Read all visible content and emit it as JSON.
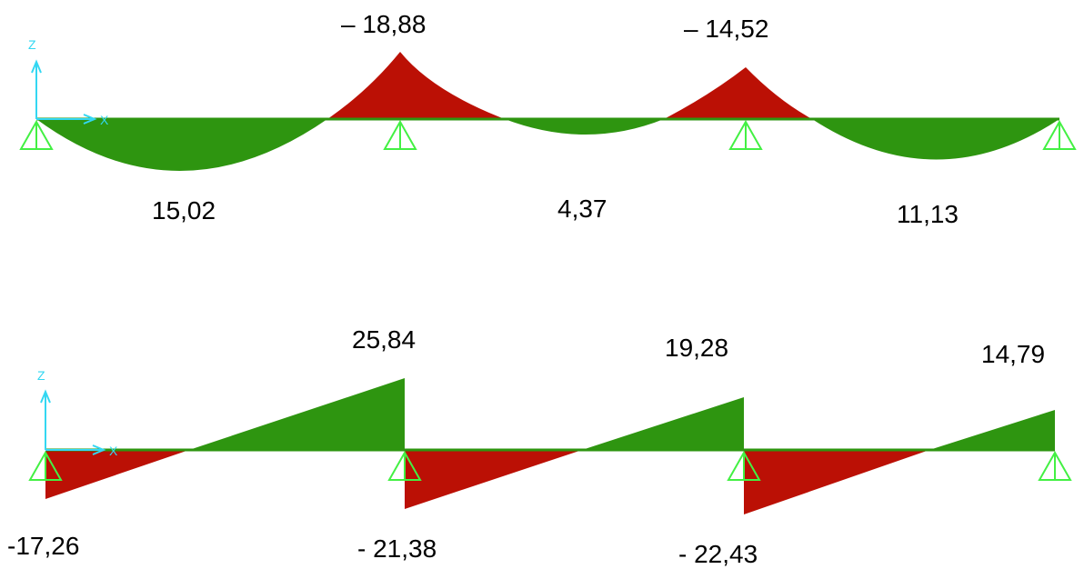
{
  "colors": {
    "positive": "#2e9510",
    "negative": "#bb1005",
    "axis": "#33d7f2",
    "support": "#43f043",
    "beam": "#2e9510",
    "text": "#000000"
  },
  "icons": {
    "support": "pin-support-icon",
    "axes": "axes-triad-icon"
  },
  "axis_labels": {
    "x": "X",
    "z": "Z"
  },
  "moment_diagram": {
    "label_values": {
      "span1_max": "15,02",
      "support2": "– 18,88",
      "span2_max": "4,37",
      "support3": "– 14,52",
      "span3_max": "11,13"
    }
  },
  "shear_diagram": {
    "label_values": {
      "span1_left": "-17,26",
      "span1_right": "25,84",
      "span2_left": "- 21,38",
      "span2_right": "19,28",
      "span3_left": "- 22,43",
      "span3_right": "14,79"
    }
  }
}
